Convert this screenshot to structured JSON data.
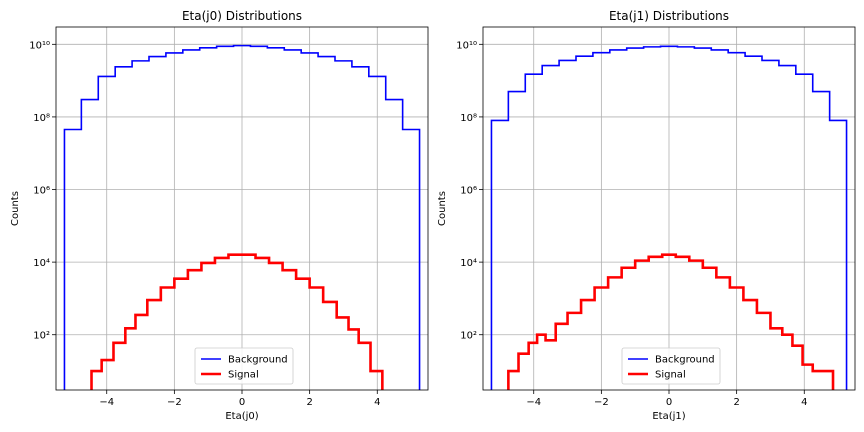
{
  "chart_data": [
    {
      "type": "line",
      "subtype": "step-histogram",
      "title": "Eta(j0) Distributions",
      "xlabel": "Eta(j0)",
      "ylabel": "Counts",
      "yscale": "log",
      "xlim": [
        -5.5,
        5.5
      ],
      "ylim": [
        3,
        30000000000
      ],
      "xticks": [
        -4,
        -2,
        0,
        2,
        4
      ],
      "yticks": [
        100,
        10000,
        1000000,
        100000000,
        10000000000
      ],
      "xtick_labels": [
        "−4",
        "−2",
        "0",
        "2",
        "4"
      ],
      "ytick_labels": [
        "10²",
        "10⁴",
        "10⁶",
        "10⁸",
        "10¹⁰"
      ],
      "grid": true,
      "legend_position": "lower-center",
      "series": [
        {
          "name": "Background",
          "color": "#0000ff",
          "x": [
            -5.0,
            -4.5,
            -4.0,
            -3.5,
            -3.0,
            -2.5,
            -2.0,
            -1.5,
            -1.0,
            -0.5,
            0.0,
            0.5,
            1.0,
            1.5,
            2.0,
            2.5,
            3.0,
            3.5,
            4.0,
            4.5,
            5.0
          ],
          "y": [
            45000000,
            300000000,
            1300000000,
            2400000000,
            3500000000,
            4600000000,
            5800000000,
            7000000000,
            8000000000,
            8800000000,
            9200000000,
            8800000000,
            8000000000,
            7000000000,
            5800000000,
            4600000000,
            3500000000,
            2400000000,
            1300000000,
            300000000,
            45000000
          ]
        },
        {
          "name": "Signal",
          "color": "#ff0000",
          "x": [
            -4.3,
            -4.0,
            -3.6,
            -3.3,
            -3.0,
            -2.6,
            -2.2,
            -1.8,
            -1.4,
            -1.0,
            -0.6,
            -0.2,
            0.2,
            0.6,
            1.0,
            1.4,
            1.8,
            2.2,
            2.6,
            3.0,
            3.3,
            3.6,
            4.0
          ],
          "y": [
            10,
            20,
            60,
            150,
            350,
            900,
            2000,
            3500,
            6000,
            9500,
            13000,
            16000,
            16000,
            13000,
            9500,
            6000,
            3500,
            2000,
            800,
            300,
            140,
            60,
            10
          ]
        }
      ]
    },
    {
      "type": "line",
      "subtype": "step-histogram",
      "title": "Eta(j1) Distributions",
      "xlabel": "Eta(j1)",
      "ylabel": "Counts",
      "yscale": "log",
      "xlim": [
        -5.5,
        5.5
      ],
      "ylim": [
        3,
        30000000000
      ],
      "xticks": [
        -4,
        -2,
        0,
        2,
        4
      ],
      "yticks": [
        100,
        10000,
        1000000,
        100000000,
        10000000000
      ],
      "xtick_labels": [
        "−4",
        "−2",
        "0",
        "2",
        "4"
      ],
      "ytick_labels": [
        "10²",
        "10⁴",
        "10⁶",
        "10⁸",
        "10¹⁰"
      ],
      "grid": true,
      "legend_position": "lower-center",
      "series": [
        {
          "name": "Background",
          "color": "#0000ff",
          "x": [
            -5.0,
            -4.5,
            -4.0,
            -3.5,
            -3.0,
            -2.5,
            -2.0,
            -1.5,
            -1.0,
            -0.5,
            0.0,
            0.5,
            1.0,
            1.5,
            2.0,
            2.5,
            3.0,
            3.5,
            4.0,
            4.5,
            5.0
          ],
          "y": [
            80000000,
            500000000,
            1500000000,
            2600000000,
            3600000000,
            4700000000,
            5900000000,
            7000000000,
            7900000000,
            8500000000,
            8800000000,
            8500000000,
            7900000000,
            7000000000,
            5900000000,
            4700000000,
            3600000000,
            2600000000,
            1500000000,
            500000000,
            80000000
          ]
        },
        {
          "name": "Signal",
          "color": "#ff0000",
          "x": [
            -4.6,
            -4.3,
            -4.0,
            -3.8,
            -3.5,
            -3.2,
            -2.8,
            -2.4,
            -2.0,
            -1.6,
            -1.2,
            -0.8,
            -0.4,
            0.0,
            0.4,
            0.8,
            1.2,
            1.6,
            2.0,
            2.4,
            2.8,
            3.2,
            3.5,
            3.8,
            4.1,
            4.4,
            4.7
          ],
          "y": [
            10,
            30,
            60,
            100,
            70,
            200,
            400,
            900,
            2000,
            3800,
            7000,
            11000,
            14000,
            16000,
            14000,
            11000,
            7000,
            3800,
            2000,
            900,
            400,
            150,
            100,
            50,
            15,
            10,
            10
          ]
        }
      ]
    }
  ]
}
